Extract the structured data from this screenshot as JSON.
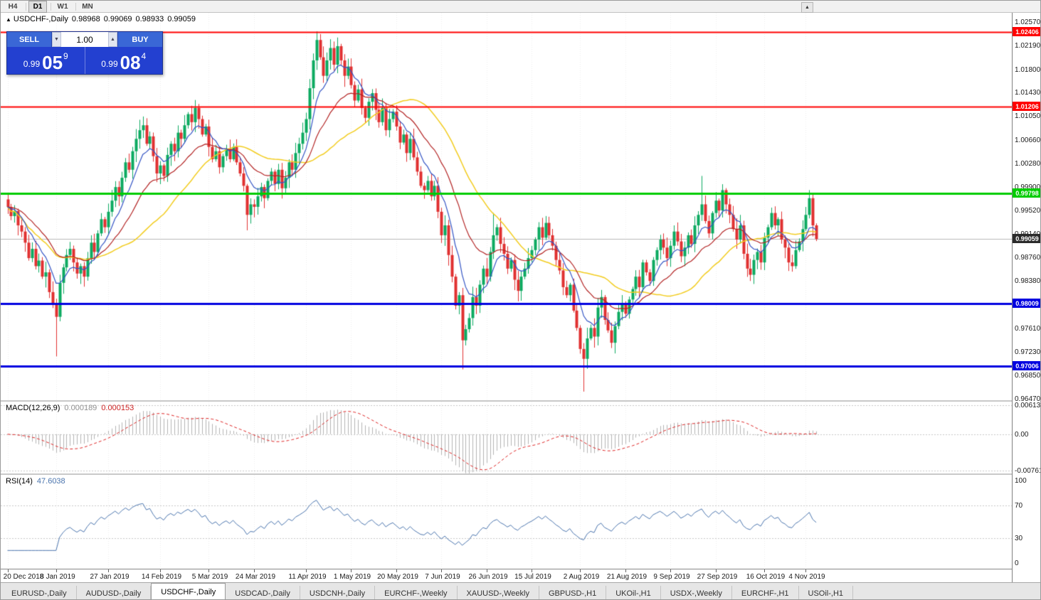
{
  "window": {
    "toolbar": {
      "timeframes": [
        "H4",
        "D1",
        "W1",
        "MN"
      ],
      "active": "D1",
      "scroll_icon": "▲"
    }
  },
  "chart": {
    "title": {
      "icon": "▲",
      "symbol": "USDCHF-,Daily",
      "open": "0.98968",
      "high": "0.99069",
      "low": "0.98933",
      "close": "0.99059"
    }
  },
  "trade_panel": {
    "sell_label": "SELL",
    "buy_label": "BUY",
    "volume": "1.00",
    "spinner_down": "▼",
    "spinner_up": "▲",
    "sell_price": {
      "prefix": "0.99",
      "big": "05",
      "sup": "9"
    },
    "buy_price": {
      "prefix": "0.99",
      "big": "08",
      "sup": "4"
    }
  },
  "indicators": {
    "macd": {
      "name": "MACD(12,26,9)",
      "main_value": "0.000189",
      "signal_value": "0.000153"
    },
    "rsi": {
      "name": "RSI(14)",
      "value": "47.6038"
    }
  },
  "tabs": {
    "active_index": 2,
    "items": [
      "EURUSD-,Daily",
      "AUDUSD-,Daily",
      "USDCHF-,Daily",
      "USDCAD-,Daily",
      "USDCNH-,Daily",
      "EURCHF-,Weekly",
      "XAUUSD-,Weekly",
      "GBPUSD-,H1",
      "UKOil-,H1",
      "USDX-,Weekly",
      "EURCHF-,H1",
      "USOil-,H1"
    ]
  },
  "chart_data": {
    "type": "candlestick",
    "symbol": "USDCHF",
    "timeframe": "Daily",
    "ylim": [
      0.9645,
      1.0272
    ],
    "price_ticks": [
      "1.02570",
      "1.02190",
      "1.01800",
      "1.01430",
      "1.01050",
      "1.00660",
      "1.00280",
      "0.99900",
      "0.99520",
      "0.99140",
      "0.98760",
      "0.98380",
      "0.97990",
      "0.97610",
      "0.97230",
      "0.96850",
      "0.96470"
    ],
    "closes": [
      0.9958,
      0.9943,
      0.9951,
      0.9928,
      0.9918,
      0.99,
      0.9875,
      0.989,
      0.9862,
      0.9871,
      0.9845,
      0.9852,
      0.982,
      0.98,
      0.978,
      0.9835,
      0.986,
      0.988,
      0.989,
      0.9868,
      0.985,
      0.9862,
      0.9845,
      0.9875,
      0.99,
      0.9885,
      0.9915,
      0.9938,
      0.9925,
      0.995,
      0.9968,
      0.999,
      0.9975,
      1.0005,
      1.003,
      1.0018,
      1.0048,
      1.0068,
      1.0082,
      1.009,
      1.006,
      1.0072,
      1.004,
      1.0012,
      1.0025,
      1.0008,
      1.0042,
      1.006,
      1.0048,
      1.0078,
      1.0068,
      1.009,
      1.0108,
      1.0095,
      1.0118,
      1.01,
      1.0075,
      1.0088,
      1.0055,
      1.0035,
      1.0048,
      1.0022,
      1.004,
      1.0052,
      1.0035,
      1.0055,
      1.003,
      1.0012,
      0.9992,
      0.9945,
      0.9962,
      0.9958,
      0.9975,
      0.999,
      0.9972,
      1.0,
      1.0015,
      0.9995,
      1.0018,
      0.9988,
      1.0005,
      1.003,
      1.0018,
      1.0045,
      1.006,
      1.0078,
      1.01,
      1.015,
      1.0195,
      1.0228,
      1.02,
      1.017,
      1.0195,
      1.0215,
      1.0188,
      1.0218,
      1.0195,
      1.017,
      1.0185,
      1.0155,
      1.013,
      1.0148,
      1.0118,
      1.0102,
      1.0128,
      1.0142,
      1.0115,
      1.0095,
      1.0118,
      1.0082,
      1.01,
      1.0112,
      1.0088,
      1.0062,
      1.0075,
      1.0045,
      1.0068,
      1.0038,
      1.0015,
      0.9992,
      0.9985,
      1.0,
      0.9975,
      0.9992,
      0.995,
      0.9912,
      0.9928,
      0.988,
      0.9845,
      0.9798,
      0.9815,
      0.9742,
      0.976,
      0.9778,
      0.9812,
      0.9798,
      0.9832,
      0.9858,
      0.9845,
      0.9885,
      0.9912,
      0.9925,
      0.9898,
      0.9882,
      0.9858,
      0.9872,
      0.984,
      0.9822,
      0.9845,
      0.9858,
      0.9875,
      0.9888,
      0.9905,
      0.9925,
      0.9908,
      0.9932,
      0.9912,
      0.9895,
      0.9872,
      0.9855,
      0.9828,
      0.9815,
      0.9832,
      0.979,
      0.9762,
      0.9728,
      0.9712,
      0.9745,
      0.9762,
      0.9748,
      0.9795,
      0.9812,
      0.9775,
      0.9758,
      0.9738,
      0.9765,
      0.9788,
      0.9802,
      0.9785,
      0.9808,
      0.9825,
      0.9845,
      0.9828,
      0.9868,
      0.9852,
      0.9838,
      0.9872,
      0.9888,
      0.9905,
      0.9892,
      0.9875,
      0.9895,
      0.9918,
      0.9902,
      0.9878,
      0.9892,
      0.9912,
      0.9898,
      0.9928,
      0.9945,
      0.9962,
      0.9935,
      0.9915,
      0.9948,
      0.9968,
      0.9952,
      0.9985,
      0.9962,
      0.9945,
      0.9922,
      0.9905,
      0.9928,
      0.9882,
      0.9858,
      0.9848,
      0.9872,
      0.9885,
      0.9868,
      0.9908,
      0.9925,
      0.9948,
      0.9928,
      0.9938,
      0.9905,
      0.9892,
      0.9868,
      0.9862,
      0.9888,
      0.9902,
      0.9922,
      0.9945,
      0.9972,
      0.9928,
      0.99059
    ],
    "wick_overrides": {
      "14": {
        "low": 0.9716
      },
      "69": {
        "low": 0.992
      },
      "89": {
        "high": 1.0242
      },
      "95": {
        "high": 1.0232
      },
      "121": {
        "high": 1.0008
      },
      "131": {
        "low": 0.9695
      },
      "140": {
        "high": 0.9948
      },
      "166": {
        "low": 0.9659
      },
      "200": {
        "high": 1.0008
      },
      "214": {
        "low": 0.9838
      },
      "231": {
        "high": 0.9985
      }
    },
    "hlines": [
      {
        "price": 1.02406,
        "label": "1.02406",
        "color": "#ff0000",
        "width": 2
      },
      {
        "price": 1.01206,
        "label": "1.01206",
        "color": "#ff0000",
        "width": 2
      },
      {
        "price": 0.99798,
        "label": "0.99798",
        "color": "#00cc00",
        "width": 3
      },
      {
        "price": 0.98009,
        "label": "0.98009",
        "color": "#0000e0",
        "width": 3
      },
      {
        "price": 0.97006,
        "label": "0.97006",
        "color": "#0000e0",
        "width": 3
      }
    ],
    "current_price": {
      "value": 0.99059,
      "label": "0.99059"
    },
    "x_ticks": [
      {
        "index": 0,
        "label": "20 Dec 2018"
      },
      {
        "index": 14,
        "label": "8 Jan 2019"
      },
      {
        "index": 29,
        "label": "27 Jan 2019"
      },
      {
        "index": 44,
        "label": "14 Feb 2019"
      },
      {
        "index": 58,
        "label": "5 Mar 2019"
      },
      {
        "index": 71,
        "label": "24 Mar 2019"
      },
      {
        "index": 86,
        "label": "11 Apr 2019"
      },
      {
        "index": 99,
        "label": "1 May 2019"
      },
      {
        "index": 112,
        "label": "20 May 2019"
      },
      {
        "index": 125,
        "label": "7 Jun 2019"
      },
      {
        "index": 138,
        "label": "26 Jun 2019"
      },
      {
        "index": 151,
        "label": "15 Jul 2019"
      },
      {
        "index": 165,
        "label": "2 Aug 2019"
      },
      {
        "index": 178,
        "label": "21 Aug 2019"
      },
      {
        "index": 191,
        "label": "9 Sep 2019"
      },
      {
        "index": 204,
        "label": "27 Sep 2019"
      },
      {
        "index": 218,
        "label": "16 Oct 2019"
      },
      {
        "index": 230,
        "label": "4 Nov 2019"
      }
    ],
    "macd": {
      "ylim": [
        -0.0082,
        0.0068
      ],
      "ticks": [
        {
          "v": 0.00613,
          "label": "0.00613"
        },
        {
          "v": 0,
          "label": "0.00"
        },
        {
          "v": -0.00761,
          "label": "-0.00761"
        }
      ]
    },
    "rsi": {
      "ylim": [
        0,
        100
      ],
      "ticks": [
        {
          "v": 100,
          "label": "100"
        },
        {
          "v": 70,
          "label": "70"
        },
        {
          "v": 30,
          "label": "30"
        },
        {
          "v": 0,
          "label": "0"
        }
      ]
    },
    "colors": {
      "bull": "#0caa60",
      "bear": "#e03030",
      "ma_fast": "#3354c4",
      "ma_mid": "#b22222",
      "ma_slow": "#f2cc1f",
      "macd_hist": "#b3b3b3",
      "macd_signal": "#dd2222",
      "rsi_line": "#4a74ad",
      "price_line": "#b8b8b8",
      "price_label_bg": "#2b2b2b"
    }
  }
}
